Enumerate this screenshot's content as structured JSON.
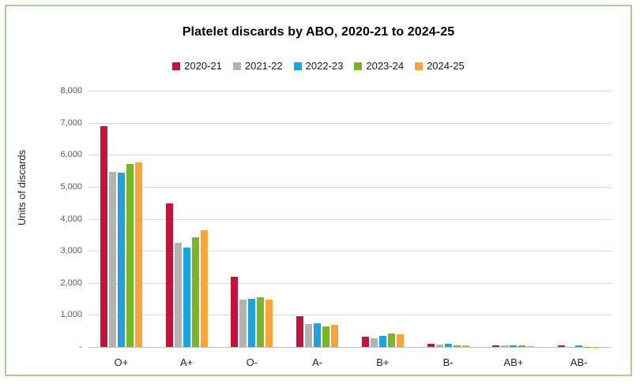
{
  "chart_data": {
    "type": "bar",
    "title": "Platelet discards by ABO, 2020-21 to 2024-25",
    "ylabel": "Units of discards",
    "xlabel": "",
    "categories": [
      "O+",
      "A+",
      "O-",
      "A-",
      "B+",
      "B-",
      "AB+",
      "AB-"
    ],
    "series": [
      {
        "name": "2020-21",
        "color": "#c0143c",
        "values": [
          6900,
          4480,
          2200,
          950,
          330,
          90,
          60,
          40
        ]
      },
      {
        "name": "2021-22",
        "color": "#b3b3b3",
        "values": [
          5470,
          3240,
          1470,
          710,
          260,
          80,
          45,
          10
        ]
      },
      {
        "name": "2022-23",
        "color": "#1fa3dd",
        "values": [
          5430,
          3100,
          1490,
          730,
          340,
          100,
          55,
          45
        ]
      },
      {
        "name": "2023-24",
        "color": "#7ab629",
        "values": [
          5700,
          3420,
          1550,
          630,
          425,
          45,
          50,
          10
        ]
      },
      {
        "name": "2024-25",
        "color": "#f8a43c",
        "values": [
          5750,
          3650,
          1470,
          690,
          390,
          50,
          25,
          10
        ]
      }
    ],
    "ylim": [
      0,
      8000
    ],
    "ytick_step": 1000,
    "ytick_labels": [
      "-",
      "1,000",
      "2,000",
      "3,000",
      "4,000",
      "5,000",
      "6,000",
      "7,000",
      "8,000"
    ],
    "grid": true,
    "legend_position": "top",
    "frame_color": "#a9d18e",
    "gridline_color": "#d9d9d9",
    "axis_line_color": "#bfbfbf",
    "tick_label_color": "#595959"
  }
}
